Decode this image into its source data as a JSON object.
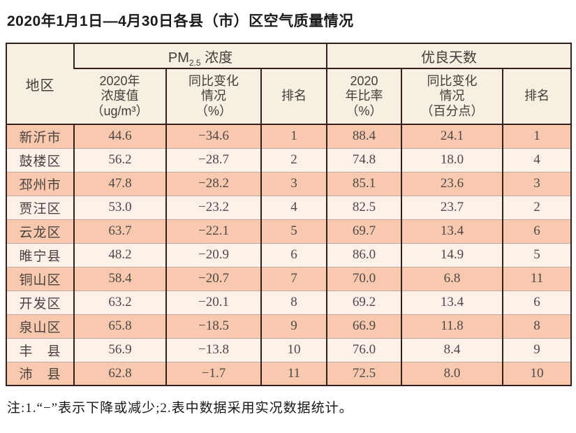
{
  "page": {
    "title": "2020年1月1日—4月30日各县（市）区空气质量情况",
    "footnote": "注:1.“−”表示下降或减少;2.表中数据采用实况数据统计。"
  },
  "colors": {
    "border_dark": "#33201a",
    "row_separator": "#bcaaa0",
    "header_bg": "#f6efe2",
    "row_odd_bg": "#f8c9af",
    "row_even_bg": "#fdf1e9"
  },
  "table": {
    "headers": {
      "region": "地区",
      "pm_group": {
        "prefix": "PM",
        "sub": "2.5",
        "suffix": " 浓度"
      },
      "good_group": "优良天数",
      "pm_value": "2020年\n浓度值\n（ug/m³）",
      "pm_change": "同比变化\n情况\n（%）",
      "pm_rank": "排名",
      "good_rate": "2020\n年比率\n（%）",
      "good_change": "同比变化\n情况\n（百分点）",
      "good_rank": "排名"
    },
    "rows": [
      {
        "region": "新沂市",
        "pm_value": "44.6",
        "pm_change": "−34.6",
        "pm_rank": "1",
        "good_rate": "88.4",
        "good_change": "24.1",
        "good_rank": "1"
      },
      {
        "region": "鼓楼区",
        "pm_value": "56.2",
        "pm_change": "−28.7",
        "pm_rank": "2",
        "good_rate": "74.8",
        "good_change": "18.0",
        "good_rank": "4"
      },
      {
        "region": "邳州市",
        "pm_value": "47.8",
        "pm_change": "−28.2",
        "pm_rank": "3",
        "good_rate": "85.1",
        "good_change": "23.6",
        "good_rank": "3"
      },
      {
        "region": "贾汪区",
        "pm_value": "53.0",
        "pm_change": "−23.2",
        "pm_rank": "4",
        "good_rate": "82.5",
        "good_change": "23.7",
        "good_rank": "2"
      },
      {
        "region": "云龙区",
        "pm_value": "63.7",
        "pm_change": "−22.1",
        "pm_rank": "5",
        "good_rate": "69.7",
        "good_change": "13.4",
        "good_rank": "6"
      },
      {
        "region": "睢宁县",
        "pm_value": "48.2",
        "pm_change": "−20.9",
        "pm_rank": "6",
        "good_rate": "86.0",
        "good_change": "14.9",
        "good_rank": "5"
      },
      {
        "region": "铜山区",
        "pm_value": "58.4",
        "pm_change": "−20.7",
        "pm_rank": "7",
        "good_rate": "70.0",
        "good_change": "6.8",
        "good_rank": "11"
      },
      {
        "region": "开发区",
        "pm_value": "63.2",
        "pm_change": "−20.1",
        "pm_rank": "8",
        "good_rate": "69.2",
        "good_change": "13.4",
        "good_rank": "6"
      },
      {
        "region": "泉山区",
        "pm_value": "65.8",
        "pm_change": "−18.5",
        "pm_rank": "9",
        "good_rate": "66.9",
        "good_change": "11.8",
        "good_rank": "8"
      },
      {
        "region": "丰　县",
        "pm_value": "56.9",
        "pm_change": "−13.8",
        "pm_rank": "10",
        "good_rate": "76.0",
        "good_change": "8.4",
        "good_rank": "9"
      },
      {
        "region": "沛　县",
        "pm_value": "62.8",
        "pm_change": "−1.7",
        "pm_rank": "11",
        "good_rate": "72.5",
        "good_change": "8.0",
        "good_rank": "10"
      }
    ]
  }
}
